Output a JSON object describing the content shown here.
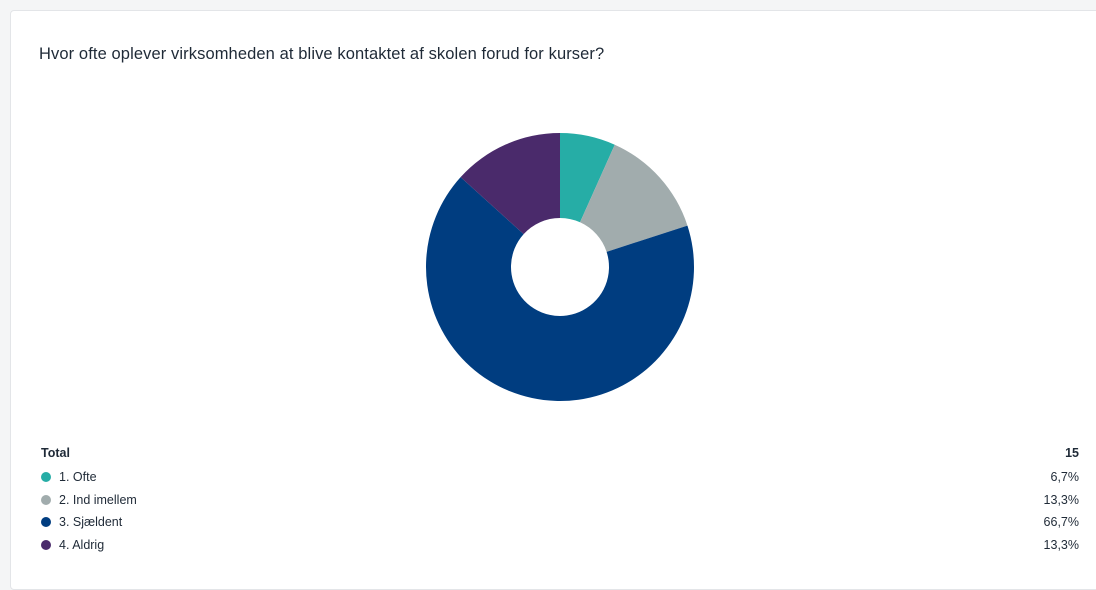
{
  "title": "Hvor ofte oplever virksomheden at blive kontaktet af skolen forud for kurser?",
  "legend": {
    "total_label": "Total",
    "total_value": "15",
    "items": [
      {
        "label": "1. Ofte",
        "pct": "6,7%",
        "color": "#26ada6"
      },
      {
        "label": "2. Ind imellem",
        "pct": "13,3%",
        "color": "#a1acad"
      },
      {
        "label": "3. Sjældent",
        "pct": "66,7%",
        "color": "#003d80"
      },
      {
        "label": "4. Aldrig",
        "pct": "13,3%",
        "color": "#4a2a6b"
      }
    ]
  },
  "chart_data": {
    "type": "pie",
    "title": "Hvor ofte oplever virksomheden at blive kontaktet af skolen forud for kurser?",
    "donut": true,
    "total": 15,
    "categories": [
      "1. Ofte",
      "2. Ind imellem",
      "3. Sjældent",
      "4. Aldrig"
    ],
    "values": [
      6.7,
      13.3,
      66.7,
      13.3
    ],
    "colors": [
      "#26ada6",
      "#a1acad",
      "#003d80",
      "#4a2a6b"
    ]
  }
}
